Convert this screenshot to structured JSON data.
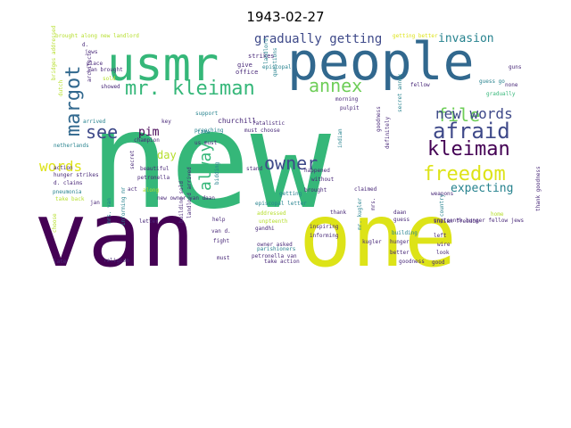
{
  "title": "1943-02-27",
  "palette": {
    "dark_purple": "#440154",
    "purple": "#482878",
    "indigo": "#3e4989",
    "blue": "#31688e",
    "teal": "#26828e",
    "sea": "#1f9e89",
    "green": "#35b779",
    "light_green": "#6ece58",
    "lime": "#b5de2b",
    "yellow": "#dde318"
  },
  "words": [
    {
      "text": "new",
      "color": "green"
    },
    {
      "text": "van",
      "color": "dark_purple"
    },
    {
      "text": "one",
      "color": "yellow"
    },
    {
      "text": "people",
      "color": "blue"
    },
    {
      "text": "usmr",
      "color": "green"
    },
    {
      "text": "mr. kleiman",
      "color": "green"
    },
    {
      "text": "annex",
      "color": "light_green"
    },
    {
      "text": "afraid",
      "color": "indigo"
    },
    {
      "text": "kleiman",
      "color": "dark_purple"
    },
    {
      "text": "freedom",
      "color": "yellow"
    },
    {
      "text": "margot",
      "color": "blue"
    },
    {
      "text": "file",
      "color": "light_green"
    },
    {
      "text": "see",
      "color": "indigo"
    },
    {
      "text": "new words",
      "color": "indigo"
    },
    {
      "text": "owner",
      "color": "indigo"
    },
    {
      "text": "words",
      "color": "yellow"
    },
    {
      "text": "always",
      "color": "green"
    },
    {
      "text": "gradually getting",
      "color": "indigo"
    },
    {
      "text": "invasion",
      "color": "teal"
    },
    {
      "text": "expecting",
      "color": "teal"
    },
    {
      "text": "pim",
      "color": "dark_purple"
    },
    {
      "text": "day",
      "color": "lime"
    },
    {
      "text": "churchill",
      "color": "purple"
    },
    {
      "text": "strikes",
      "color": "purple"
    },
    {
      "text": "give",
      "color": "purple"
    },
    {
      "text": "office",
      "color": "purple"
    },
    {
      "text": "landlord",
      "color": "teal"
    },
    {
      "text": "questions",
      "color": "teal"
    },
    {
      "text": "fellow",
      "color": "purple"
    },
    {
      "text": "guess go",
      "color": "teal"
    },
    {
      "text": "gradually",
      "color": "green"
    },
    {
      "text": "guns",
      "color": "purple"
    },
    {
      "text": "none",
      "color": "purple"
    },
    {
      "text": "getting better",
      "color": "yellow"
    },
    {
      "text": "brought along new landlord",
      "color": "lime"
    },
    {
      "text": "bridges addressed",
      "color": "lime"
    },
    {
      "text": "dutch",
      "color": "lime"
    },
    {
      "text": "architect",
      "color": "purple"
    },
    {
      "text": "jews",
      "color": "purple"
    },
    {
      "text": "place",
      "color": "purple"
    },
    {
      "text": "jan brought",
      "color": "purple"
    },
    {
      "text": "sold",
      "color": "lime"
    },
    {
      "text": "showed",
      "color": "purple"
    },
    {
      "text": "arrived",
      "color": "teal"
    },
    {
      "text": "netherlands",
      "color": "teal"
    },
    {
      "text": "action",
      "color": "purple"
    },
    {
      "text": "hunger strikes",
      "color": "purple"
    },
    {
      "text": "d. claims",
      "color": "purple"
    },
    {
      "text": "pneumonia",
      "color": "teal"
    },
    {
      "text": "take back",
      "color": "lime"
    },
    {
      "text": "jan",
      "color": "purple"
    },
    {
      "text": "secret",
      "color": "purple"
    },
    {
      "text": "beautiful",
      "color": "purple"
    },
    {
      "text": "petronella",
      "color": "purple"
    },
    {
      "text": "act",
      "color": "purple"
    },
    {
      "text": "along",
      "color": "lime"
    },
    {
      "text": "champion",
      "color": "purple"
    },
    {
      "text": "preaching",
      "color": "teal"
    },
    {
      "text": "support",
      "color": "teal"
    },
    {
      "text": "take",
      "color": "teal"
    },
    {
      "text": "us must",
      "color": "purple"
    },
    {
      "text": "must choose",
      "color": "purple"
    },
    {
      "text": "fatalistic",
      "color": "purple"
    },
    {
      "text": "stand",
      "color": "purple"
    },
    {
      "text": "getting",
      "color": "teal"
    },
    {
      "text": "happened",
      "color": "purple"
    },
    {
      "text": "without",
      "color": "purple"
    },
    {
      "text": "brought",
      "color": "purple"
    },
    {
      "text": "claimed",
      "color": "purple"
    },
    {
      "text": "morning",
      "color": "purple"
    },
    {
      "text": "pulpit",
      "color": "purple"
    },
    {
      "text": "indian",
      "color": "teal"
    },
    {
      "text": "goodness",
      "color": "purple"
    },
    {
      "text": "definitely",
      "color": "purple"
    },
    {
      "text": "weapons",
      "color": "purple"
    },
    {
      "text": "secret annex",
      "color": "teal"
    },
    {
      "text": "episcopal letter",
      "color": "teal"
    },
    {
      "text": "episcopal",
      "color": "teal"
    },
    {
      "text": "key",
      "color": "purple"
    },
    {
      "text": "bidding",
      "color": "teal"
    },
    {
      "text": "new owner van daan",
      "color": "purple"
    },
    {
      "text": "letter",
      "color": "purple"
    },
    {
      "text": "help",
      "color": "purple"
    },
    {
      "text": "addressed",
      "color": "lime"
    },
    {
      "text": "thank",
      "color": "purple"
    },
    {
      "text": "daan",
      "color": "purple"
    },
    {
      "text": "guess",
      "color": "purple"
    },
    {
      "text": "country",
      "color": "teal"
    },
    {
      "text": "home",
      "color": "lime"
    },
    {
      "text": "unpteenth",
      "color": "lime"
    },
    {
      "text": "inspiring",
      "color": "purple"
    },
    {
      "text": "gandhi",
      "color": "purple"
    },
    {
      "text": "informing",
      "color": "purple"
    },
    {
      "text": "hunger",
      "color": "purple"
    },
    {
      "text": "building",
      "color": "teal"
    },
    {
      "text": "left",
      "color": "purple"
    },
    {
      "text": "indian freedom",
      "color": "purple"
    },
    {
      "text": "unpteenth hunger fellow jews",
      "color": "purple"
    },
    {
      "text": "thank goodness",
      "color": "purple"
    },
    {
      "text": "informing mr",
      "color": "teal"
    },
    {
      "text": "building sold",
      "color": "purple"
    },
    {
      "text": "landlord arrived",
      "color": "purple"
    },
    {
      "text": "van d.",
      "color": "purple"
    },
    {
      "text": "mrs. van",
      "color": "teal"
    },
    {
      "text": "fight",
      "color": "purple"
    },
    {
      "text": "must",
      "color": "purple"
    },
    {
      "text": "mr. kugler",
      "color": "teal"
    },
    {
      "text": "kugler",
      "color": "purple"
    },
    {
      "text": "better",
      "color": "purple"
    },
    {
      "text": "look",
      "color": "purple"
    },
    {
      "text": "parishioners",
      "color": "teal"
    },
    {
      "text": "petronella van",
      "color": "purple"
    },
    {
      "text": "owner asked",
      "color": "purple"
    },
    {
      "text": "take action",
      "color": "purple"
    },
    {
      "text": "goodness",
      "color": "purple"
    },
    {
      "text": "good",
      "color": "purple"
    },
    {
      "text": "mrs.",
      "color": "purple"
    },
    {
      "text": "religion",
      "color": "purple"
    },
    {
      "text": "late",
      "color": "purple"
    },
    {
      "text": "choose",
      "color": "lime"
    },
    {
      "text": "d.",
      "color": "purple"
    },
    {
      "text": "wire",
      "color": "purple"
    }
  ]
}
